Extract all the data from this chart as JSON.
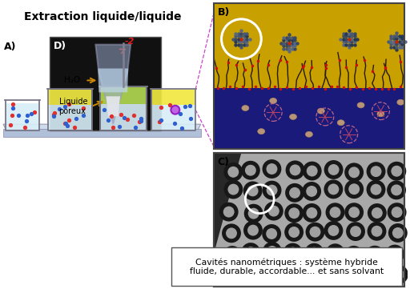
{
  "title": "Extraction liquide/liquide",
  "label_A": "A)",
  "label_B": "B)",
  "label_C": "C)",
  "label_D": "D)",
  "caption": "Cavités nanométriques : système hybride\nfluide, durable, accordable... et sans solvant",
  "h2o_label": "H₂O",
  "liq_label": "Liquide\nporeux",
  "bg_color": "#ffffff",
  "yellow_color": "#c8a000",
  "blue_color": "#1a1a7a",
  "beaker_fill_yellow": "#f0e840",
  "beaker_fill_green": "#b0d850",
  "beaker_fill_water": "#d8eef8",
  "dot_red": "#e03030",
  "dot_blue": "#3060d0",
  "stirrer_color": "#808090",
  "arrow_color": "#dd2020",
  "dashed_line_color": "#cc44cc",
  "annot_arrow_color": "#cc8800",
  "tray_color": "#c8d8e8",
  "shelf_color": "#b0c0d8"
}
